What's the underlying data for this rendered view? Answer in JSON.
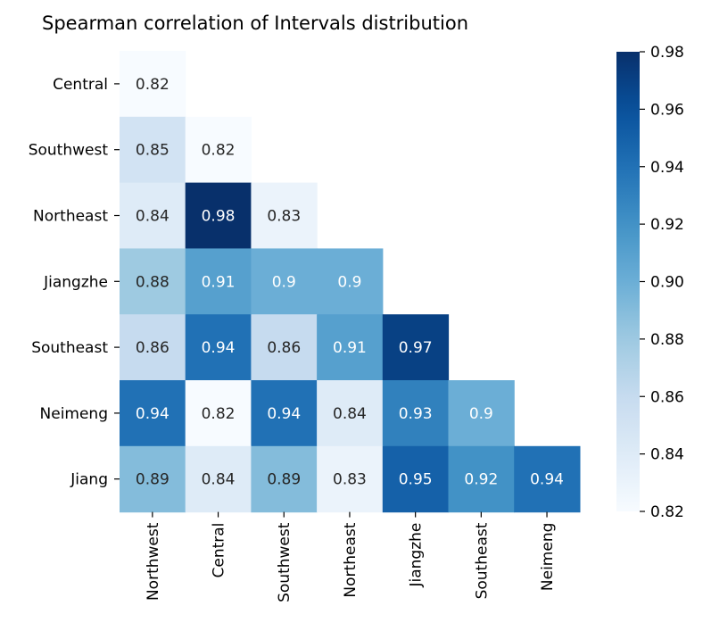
{
  "chart_data": {
    "type": "heatmap",
    "title": "Spearman correlation of Intervals distribution",
    "row_labels": [
      "Central",
      "Southwest",
      "Northeast",
      "Jiangzhe",
      "Southeast",
      "Neimeng",
      "Jiang"
    ],
    "col_labels": [
      "Northwest",
      "Central",
      "Southwest",
      "Northeast",
      "Jiangzhe",
      "Southeast",
      "Neimeng"
    ],
    "values": [
      [
        0.82,
        null,
        null,
        null,
        null,
        null,
        null
      ],
      [
        0.85,
        0.82,
        null,
        null,
        null,
        null,
        null
      ],
      [
        0.84,
        0.98,
        0.83,
        null,
        null,
        null,
        null
      ],
      [
        0.88,
        0.91,
        0.9,
        0.9,
        null,
        null,
        null
      ],
      [
        0.86,
        0.94,
        0.86,
        0.91,
        0.97,
        null,
        null
      ],
      [
        0.94,
        0.82,
        0.94,
        0.84,
        0.93,
        0.9,
        null
      ],
      [
        0.89,
        0.84,
        0.89,
        0.83,
        0.95,
        0.92,
        0.94
      ]
    ],
    "value_labels": [
      [
        "0.82",
        "",
        "",
        "",
        "",
        "",
        ""
      ],
      [
        "0.85",
        "0.82",
        "",
        "",
        "",
        "",
        ""
      ],
      [
        "0.84",
        "0.98",
        "0.83",
        "",
        "",
        "",
        ""
      ],
      [
        "0.88",
        "0.91",
        "0.9",
        "0.9",
        "",
        "",
        ""
      ],
      [
        "0.86",
        "0.94",
        "0.86",
        "0.91",
        "0.97",
        "",
        ""
      ],
      [
        "0.94",
        "0.82",
        "0.94",
        "0.84",
        "0.93",
        "0.9",
        ""
      ],
      [
        "0.89",
        "0.84",
        "0.89",
        "0.83",
        "0.95",
        "0.92",
        "0.94"
      ]
    ],
    "colorbar": {
      "range": [
        0.82,
        0.98
      ],
      "ticks": [
        "0.82",
        "0.84",
        "0.86",
        "0.88",
        "0.90",
        "0.92",
        "0.94",
        "0.96",
        "0.98"
      ],
      "colormap": "Blues",
      "color_low": "#f7fbff",
      "color_high": "#08306b"
    },
    "mask": "upper triangle hidden",
    "grid": false
  }
}
